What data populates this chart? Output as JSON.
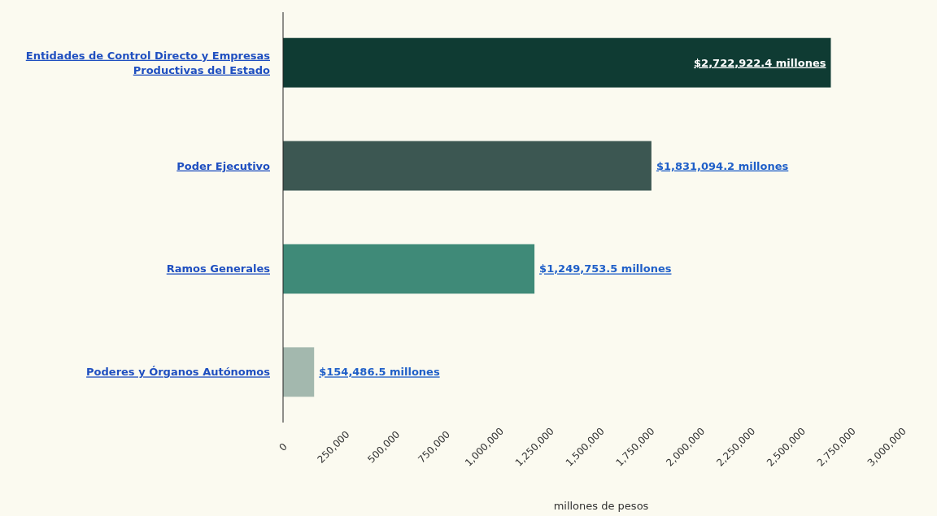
{
  "chart_data": {
    "type": "bar",
    "orientation": "horizontal",
    "xlabel": "millones de pesos",
    "categories": [
      "Entidades de Control Directo y Empresas Productivas del Estado",
      "Poder Ejecutivo",
      "Ramos Generales",
      "Poderes y Órganos Autónomos"
    ],
    "values": [
      2722922.4,
      1831094.2,
      1249753.5,
      154486.5
    ],
    "colors": [
      "#0f3b33",
      "#3c5752",
      "#3f8a78",
      "#a3b8ae"
    ],
    "value_labels": [
      "$2,722,922.4 millones",
      "$1,831,094.2 millones",
      "$1,249,753.5 millones",
      "$154,486.5 millones"
    ],
    "xlim": [
      0,
      3000000
    ],
    "xticks": [
      {
        "value": 0,
        "label": "0"
      },
      {
        "value": 250000,
        "label": "250,000"
      },
      {
        "value": 500000,
        "label": "500,000"
      },
      {
        "value": 750000,
        "label": "750,000"
      },
      {
        "value": 1000000,
        "label": "1,000,000"
      },
      {
        "value": 1250000,
        "label": "1,250,000"
      },
      {
        "value": 1500000,
        "label": "1,500,000"
      },
      {
        "value": 1750000,
        "label": "1,750,000"
      },
      {
        "value": 2000000,
        "label": "2,000,000"
      },
      {
        "value": 2250000,
        "label": "2,250,000"
      },
      {
        "value": 2500000,
        "label": "2,500,000"
      },
      {
        "value": 2750000,
        "label": "2,750,000"
      },
      {
        "value": 3000000,
        "label": "3,000,000"
      }
    ],
    "grid": false
  }
}
